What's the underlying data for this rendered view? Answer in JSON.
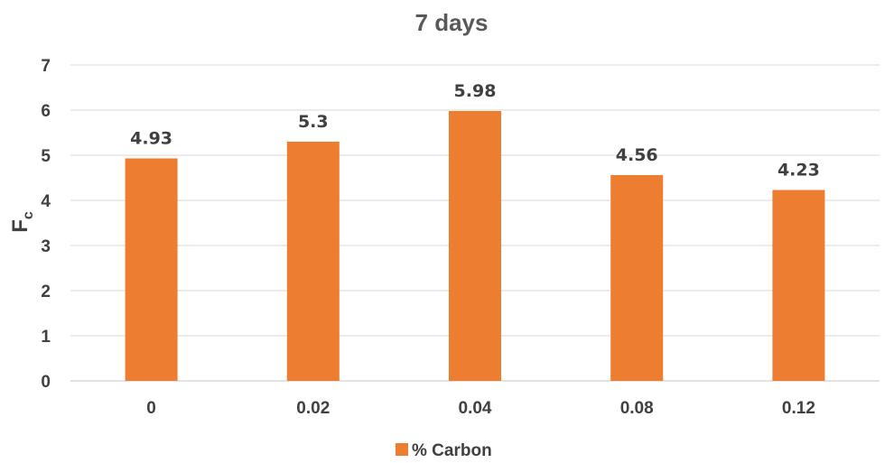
{
  "chart_data": {
    "type": "bar",
    "title": "7 days",
    "xlabel": "",
    "ylabel": "F",
    "ylabel_subscript": "c",
    "categories": [
      "0",
      "0.02",
      "0.04",
      "0.08",
      "0.12"
    ],
    "series": [
      {
        "name": "% Carbon",
        "values": [
          4.93,
          5.3,
          5.98,
          4.56,
          4.23
        ]
      }
    ],
    "data_labels": [
      "4.93",
      "5.3",
      "5.98",
      "4.56",
      "4.23"
    ],
    "ylim": [
      0,
      7
    ],
    "yticks": [
      "0",
      "1",
      "2",
      "3",
      "4",
      "5",
      "6",
      "7"
    ],
    "grid": true,
    "legend_position": "bottom",
    "colors": {
      "bar": "#ED7D31",
      "grid": "#D9D9D9",
      "text": "#404040",
      "title": "#595959"
    }
  }
}
